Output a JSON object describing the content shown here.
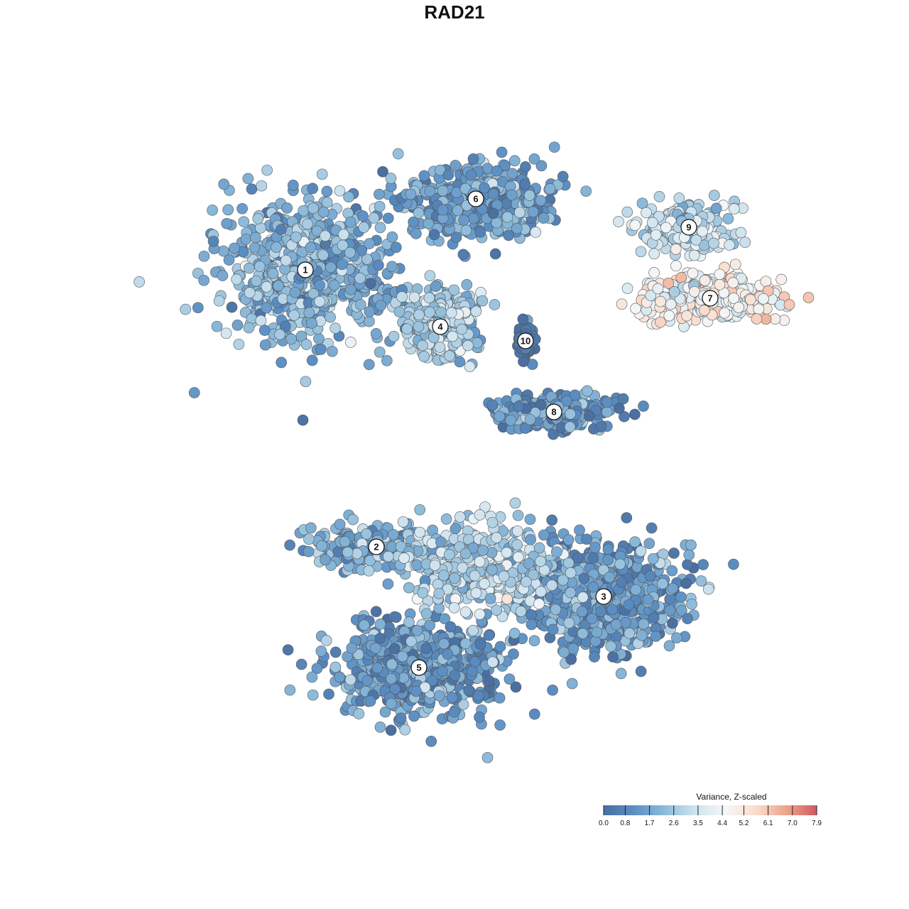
{
  "chart_data": {
    "type": "scatter",
    "title": "RAD21",
    "xlabel": "",
    "ylabel": "",
    "xlim": [
      -50,
      50
    ],
    "ylim": [
      -50,
      50
    ],
    "grid": false,
    "legend": {
      "title": "Variance, Z-scaled",
      "placement": "bottom-right",
      "ticks": [
        "0.0",
        "0.8",
        "1.7",
        "2.6",
        "3.5",
        "4.4",
        "5.2",
        "6.1",
        "7.0",
        "7.9"
      ],
      "range": [
        0.0,
        7.9
      ],
      "colors": [
        "#4a6fa0",
        "#5b8fc4",
        "#8dbbda",
        "#cfe3ef",
        "#f4f7f8",
        "#f9dccd",
        "#eea48b",
        "#cf5a62"
      ]
    },
    "clusters": [
      {
        "label": "1",
        "x": -21,
        "y": 26,
        "value": 2.0,
        "spread": [
          10.5,
          9.0
        ],
        "count": 700
      },
      {
        "label": "2",
        "x": -11,
        "y": -13,
        "value": 2.0,
        "spread": [
          9.0,
          3.0
        ],
        "count": 200
      },
      {
        "label": "3",
        "x": 21,
        "y": -20,
        "value": 1.4,
        "spread": [
          10.0,
          7.0
        ],
        "count": 600
      },
      {
        "label": "4",
        "x": -2,
        "y": 18,
        "value": 2.6,
        "spread": [
          4.6,
          4.6
        ],
        "count": 380
      },
      {
        "label": "5",
        "x": -5,
        "y": -30,
        "value": 1.4,
        "spread": [
          10.0,
          6.0
        ],
        "count": 650
      },
      {
        "label": "6",
        "x": 3,
        "y": 36,
        "value": 1.6,
        "spread": [
          9.0,
          4.5
        ],
        "count": 500
      },
      {
        "label": "7",
        "x": 36,
        "y": 22,
        "value": 4.6,
        "spread": [
          9.0,
          3.0
        ],
        "count": 300
      },
      {
        "label": "8",
        "x": 14,
        "y": 6,
        "value": 1.2,
        "spread": [
          7.5,
          2.0
        ],
        "count": 280
      },
      {
        "label": "9",
        "x": 33,
        "y": 32,
        "value": 3.3,
        "spread": [
          6.5,
          3.0
        ],
        "count": 220
      },
      {
        "label": "10",
        "x": 10,
        "y": 16,
        "value": 0.1,
        "spread": [
          1.5,
          2.5
        ],
        "count": 60
      },
      {
        "label": "",
        "x": 4,
        "y": -16,
        "value": 2.9,
        "spread": [
          8.0,
          5.0
        ],
        "count": 450
      }
    ]
  }
}
